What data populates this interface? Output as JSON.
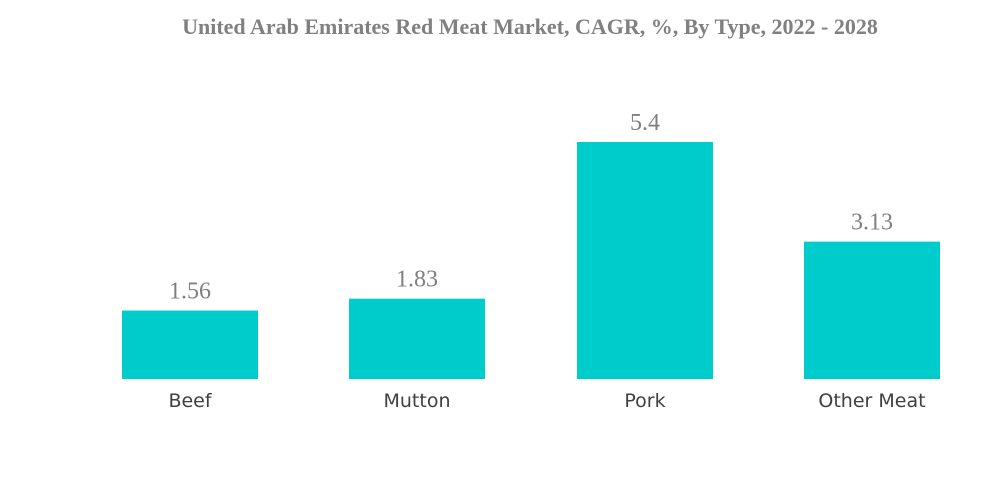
{
  "chart_data": {
    "type": "bar",
    "title": "United Arab Emirates Red Meat Market, CAGR, %, By Type, 2022 - 2028",
    "categories": [
      "Beef",
      "Mutton",
      "Pork",
      "Other Meat"
    ],
    "values": [
      1.56,
      1.83,
      5.4,
      3.13
    ],
    "data_labels": [
      "1.56",
      "1.83",
      "5.4",
      "3.13"
    ],
    "xlabel": "",
    "ylabel": "",
    "ylim": [
      0,
      5.4
    ],
    "grid": false,
    "legend": "none",
    "bar_color": "#00cccc"
  }
}
